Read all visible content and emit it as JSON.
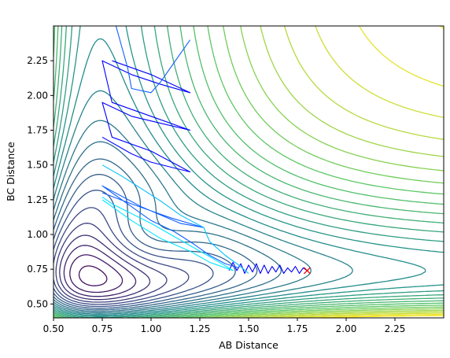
{
  "chart_data": {
    "type": "contour",
    "title": "",
    "xlabel": "AB Distance",
    "ylabel": "BC Distance",
    "xlim": [
      0.5,
      2.5
    ],
    "ylim": [
      0.4,
      2.5
    ],
    "x_ticks": [
      "0.50",
      "0.75",
      "1.00",
      "1.25",
      "1.50",
      "1.75",
      "2.00",
      "2.25"
    ],
    "y_ticks": [
      "0.50",
      "0.75",
      "1.00",
      "1.25",
      "1.50",
      "1.75",
      "2.00",
      "2.25"
    ],
    "grid": false,
    "colormap": [
      "#440154",
      "#3b528b",
      "#21918c",
      "#5ec962",
      "#fde725"
    ],
    "contour_levels": 28,
    "surface": {
      "equilibrium_distance": 0.74,
      "inner_wall": 0.62
    },
    "trajectory_colors": [
      "#0000ff",
      "#1060ff",
      "#00bfff",
      "#00e5ff"
    ],
    "trajectories": [
      {
        "points": [
          [
            1.8,
            0.74
          ],
          [
            1.78,
            0.76
          ],
          [
            1.76,
            0.72
          ],
          [
            1.74,
            0.77
          ],
          [
            1.72,
            0.73
          ],
          [
            1.7,
            0.76
          ],
          [
            1.68,
            0.72
          ],
          [
            1.66,
            0.78
          ],
          [
            1.64,
            0.73
          ],
          [
            1.62,
            0.77
          ],
          [
            1.6,
            0.72
          ],
          [
            1.58,
            0.78
          ],
          [
            1.56,
            0.72
          ],
          [
            1.54,
            0.79
          ],
          [
            1.52,
            0.73
          ],
          [
            1.5,
            0.78
          ],
          [
            1.48,
            0.72
          ],
          [
            1.46,
            0.79
          ],
          [
            1.44,
            0.74
          ],
          [
            1.42,
            0.8
          ],
          [
            1.4,
            0.74
          ]
        ]
      },
      {
        "points": [
          [
            1.45,
            0.76
          ],
          [
            1.38,
            0.79
          ],
          [
            1.3,
            0.85
          ],
          [
            1.22,
            0.93
          ],
          [
            1.12,
            1.02
          ],
          [
            1.0,
            1.1
          ],
          [
            0.9,
            1.2
          ],
          [
            0.8,
            1.3
          ],
          [
            0.75,
            1.35
          ],
          [
            0.95,
            1.2
          ],
          [
            1.15,
            1.08
          ],
          [
            1.27,
            1.05
          ],
          [
            1.1,
            1.12
          ],
          [
            0.9,
            1.22
          ],
          [
            0.75,
            1.3
          ]
        ]
      },
      {
        "points": [
          [
            0.75,
            1.5
          ],
          [
            0.85,
            1.42
          ],
          [
            0.95,
            1.33
          ],
          [
            1.05,
            1.24
          ],
          [
            1.15,
            1.14
          ],
          [
            1.27,
            1.05
          ],
          [
            1.3,
            0.95
          ],
          [
            1.38,
            0.85
          ],
          [
            1.45,
            0.78
          ],
          [
            1.5,
            0.72
          ]
        ]
      },
      {
        "points": [
          [
            0.75,
            1.25
          ],
          [
            0.9,
            1.1
          ],
          [
            1.05,
            0.97
          ],
          [
            1.2,
            0.88
          ],
          [
            1.3,
            0.8
          ],
          [
            1.42,
            0.74
          ],
          [
            1.35,
            0.8
          ],
          [
            1.2,
            0.92
          ],
          [
            1.0,
            1.08
          ],
          [
            0.8,
            1.22
          ],
          [
            0.75,
            1.27
          ]
        ]
      },
      {
        "points": [
          [
            0.75,
            1.7
          ],
          [
            0.9,
            1.58
          ],
          [
            1.0,
            1.52
          ],
          [
            1.2,
            1.45
          ],
          [
            1.0,
            1.6
          ],
          [
            0.8,
            1.7
          ],
          [
            0.75,
            1.95
          ],
          [
            0.9,
            1.85
          ],
          [
            1.05,
            1.8
          ],
          [
            1.2,
            1.75
          ],
          [
            1.0,
            1.85
          ],
          [
            0.8,
            1.95
          ],
          [
            0.75,
            2.25
          ],
          [
            0.9,
            2.15
          ],
          [
            1.05,
            2.08
          ],
          [
            1.2,
            2.02
          ],
          [
            1.0,
            2.15
          ],
          [
            0.8,
            2.25
          ]
        ]
      },
      {
        "points": [
          [
            0.82,
            2.5
          ],
          [
            0.85,
            2.35
          ],
          [
            0.88,
            2.2
          ],
          [
            0.9,
            2.05
          ],
          [
            1.0,
            2.02
          ],
          [
            1.05,
            2.1
          ],
          [
            1.1,
            2.2
          ],
          [
            1.15,
            2.3
          ],
          [
            1.2,
            2.4
          ]
        ]
      }
    ],
    "marker": {
      "x": 1.8,
      "y": 0.74,
      "symbol": "x",
      "color": "#e00000"
    }
  }
}
